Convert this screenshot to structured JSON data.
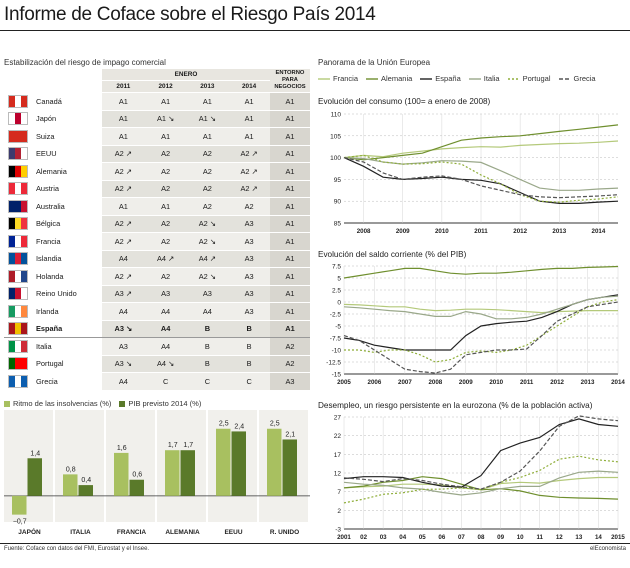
{
  "title": "Informe de Coface sobre el Riesgo País 2014",
  "table": {
    "subtitle": "Estabilización del riesgo de impago comercial",
    "group_header": "ENERO",
    "years": [
      "2011",
      "2012",
      "2013",
      "2014"
    ],
    "last_header": "ENTORNO PARA NEGOCIOS",
    "rows": [
      {
        "country": "Canadá",
        "flag": [
          "#d52b1e",
          "#ffffff",
          "#d52b1e"
        ],
        "vals": [
          "A1",
          "A1",
          "A1",
          "A1"
        ],
        "env": "A1"
      },
      {
        "country": "Japón",
        "flag": [
          "#ffffff",
          "#bc002d",
          "#ffffff"
        ],
        "vals": [
          "A1",
          "A1 ↘",
          "A1 ↘",
          "A1"
        ],
        "env": "A1"
      },
      {
        "country": "Suiza",
        "flag": [
          "#d52b1e",
          "#d52b1e",
          "#d52b1e"
        ],
        "vals": [
          "A1",
          "A1",
          "A1",
          "A1"
        ],
        "env": "A1"
      },
      {
        "country": "EEUU",
        "flag": [
          "#3c3b6e",
          "#b22234",
          "#ffffff"
        ],
        "vals": [
          "A2 ↗",
          "A2",
          "A2",
          "A2 ↗"
        ],
        "env": "A1"
      },
      {
        "country": "Alemania",
        "flag": [
          "#000000",
          "#dd0000",
          "#ffce00"
        ],
        "vals": [
          "A2 ↗",
          "A2",
          "A2",
          "A2 ↗"
        ],
        "env": "A1"
      },
      {
        "country": "Austria",
        "flag": [
          "#ed2939",
          "#ffffff",
          "#ed2939"
        ],
        "vals": [
          "A2 ↗",
          "A2",
          "A2",
          "A2 ↗"
        ],
        "env": "A1"
      },
      {
        "country": "Australia",
        "flag": [
          "#012169",
          "#012169",
          "#c8102e"
        ],
        "vals": [
          "A1",
          "A1",
          "A2",
          "A2"
        ],
        "env": "A1"
      },
      {
        "country": "Bélgica",
        "flag": [
          "#000000",
          "#fdda24",
          "#ef3340"
        ],
        "vals": [
          "A2 ↗",
          "A2",
          "A2 ↘",
          "A3"
        ],
        "env": "A1"
      },
      {
        "country": "Francia",
        "flag": [
          "#002395",
          "#ffffff",
          "#ed2939"
        ],
        "vals": [
          "A2 ↗",
          "A2",
          "A2 ↘",
          "A3"
        ],
        "env": "A1"
      },
      {
        "country": "Islandia",
        "flag": [
          "#02529c",
          "#dc1e35",
          "#02529c"
        ],
        "vals": [
          "A4",
          "A4 ↗",
          "A4 ↗",
          "A3"
        ],
        "env": "A1"
      },
      {
        "country": "Holanda",
        "flag": [
          "#ae1c28",
          "#ffffff",
          "#21468b"
        ],
        "vals": [
          "A2 ↗",
          "A2",
          "A2 ↘",
          "A3"
        ],
        "env": "A1"
      },
      {
        "country": "Reino Unido",
        "flag": [
          "#012169",
          "#c8102e",
          "#ffffff"
        ],
        "vals": [
          "A3 ↗",
          "A3",
          "A3",
          "A3"
        ],
        "env": "A1"
      },
      {
        "country": "Irlanda",
        "flag": [
          "#169b62",
          "#ffffff",
          "#ff883e"
        ],
        "vals": [
          "A4",
          "A4",
          "A4",
          "A3"
        ],
        "env": "A1"
      },
      {
        "country": "España",
        "flag": [
          "#aa151b",
          "#f1bf00",
          "#aa151b"
        ],
        "vals": [
          "A3 ↘",
          "A4",
          "B",
          "B"
        ],
        "env": "A1",
        "highlight": true
      },
      {
        "country": "Italia",
        "flag": [
          "#009246",
          "#ffffff",
          "#ce2b37"
        ],
        "vals": [
          "A3",
          "A4",
          "B",
          "B"
        ],
        "env": "A2"
      },
      {
        "country": "Portugal",
        "flag": [
          "#006600",
          "#ff0000",
          "#ff0000"
        ],
        "vals": [
          "A3 ↘",
          "A4 ↘",
          "B",
          "B"
        ],
        "env": "A2"
      },
      {
        "country": "Grecia",
        "flag": [
          "#0d5eaf",
          "#ffffff",
          "#0d5eaf"
        ],
        "vals": [
          "A4",
          "C",
          "C",
          "C"
        ],
        "env": "A3"
      }
    ]
  },
  "bar_legend": {
    "a": "Ritmo de las insolvencias (%)",
    "b": "PIB previsto 2014 (%)"
  },
  "panorama": "Panorama de la Unión Europea",
  "series_legend": [
    "Francia",
    "Alemania",
    "España",
    "Italia",
    "Portugal",
    "Grecia"
  ],
  "colors": {
    "dark_green": "#5a7a2a",
    "light_green": "#a8c060",
    "francia": "#b4c97a",
    "alemania": "#6f8f2e",
    "espana": "#222222",
    "italia": "#9aa88a",
    "portugal": "#8fae3a",
    "grecia": "#555555"
  },
  "footer": {
    "source": "Fuente: Coface con datos del FMI, Eurostat y el Insee.",
    "brand": "elEconomista"
  },
  "chart_data": [
    {
      "type": "bar",
      "categories": [
        "JAPÓN",
        "ITALIA",
        "FRANCIA",
        "ALEMANIA",
        "EEUU",
        "R. UNIDO"
      ],
      "series": [
        {
          "name": "Ritmo de las insolvencias (%)",
          "values": [
            -0.7,
            0.8,
            1.6,
            1.7,
            2.5,
            2.5
          ]
        },
        {
          "name": "PIB previsto 2014 (%)",
          "values": [
            1.4,
            0.4,
            0.6,
            1.7,
            2.4,
            2.1
          ]
        }
      ],
      "value_labels": [
        [
          "−0,7",
          "0,8",
          "1,6",
          "1,7",
          "2,5",
          "2,5"
        ],
        [
          "1,4",
          "0,4",
          "0,6",
          "1,7",
          "2,4",
          "2,1"
        ]
      ],
      "ylim": [
        -0.9,
        2.9
      ]
    },
    {
      "type": "line",
      "title": "Evolución del consumo (100= a enero de 2008)",
      "x": [
        2007.5,
        2008,
        2008.5,
        2009,
        2009.5,
        2010,
        2010.5,
        2011,
        2011.5,
        2012,
        2012.5,
        2013,
        2013.5,
        2014,
        2014.5
      ],
      "xticks": [
        "2008",
        "2009",
        "2010",
        "2011",
        "2012",
        "2013",
        "2014"
      ],
      "yticks": [
        85,
        90,
        95,
        100,
        105,
        110
      ],
      "ylim": [
        85,
        110
      ],
      "series": [
        {
          "name": "Francia",
          "values": [
            100,
            100.5,
            100.2,
            101,
            101.5,
            102,
            102.3,
            102.5,
            102.4,
            102.8,
            103,
            103.2,
            103.3,
            103.5,
            103.8
          ]
        },
        {
          "name": "Alemania",
          "values": [
            100,
            99.5,
            100,
            100.5,
            101,
            102.5,
            104,
            104.5,
            104.8,
            105,
            105.5,
            106,
            106.5,
            107,
            107.5
          ]
        },
        {
          "name": "España",
          "values": [
            100,
            98,
            95.5,
            95,
            95.2,
            95.5,
            95,
            94.8,
            94,
            92,
            90,
            89.5,
            89.5,
            89.8,
            90
          ]
        },
        {
          "name": "Italia",
          "values": [
            100,
            99.8,
            99,
            98.5,
            98.8,
            99.3,
            99.2,
            98.9,
            97,
            95,
            93,
            92.5,
            92.5,
            92.8,
            93
          ]
        },
        {
          "name": "Portugal",
          "values": [
            100,
            100.5,
            99,
            98.5,
            98.6,
            99,
            98.5,
            96,
            94,
            91.5,
            90,
            89.8,
            90.2,
            90.5,
            91
          ]
        },
        {
          "name": "Grecia",
          "values": [
            100,
            99,
            96.5,
            95,
            95.5,
            95.8,
            95,
            93.5,
            92.5,
            91.5,
            91,
            90.8,
            91,
            91.2,
            91.5
          ]
        }
      ]
    },
    {
      "type": "line",
      "title": "Evolución del saldo corriente (% del PIB)",
      "x": [
        2005,
        2005.5,
        2006,
        2006.5,
        2007,
        2007.5,
        2008,
        2008.5,
        2009,
        2009.5,
        2010,
        2010.5,
        2011,
        2011.5,
        2012,
        2012.5,
        2013,
        2013.5,
        2014
      ],
      "xticks": [
        "2005",
        "2006",
        "2007",
        "2008",
        "2009",
        "2010",
        "2011",
        "2012",
        "2013",
        "2014"
      ],
      "yticks": [
        -15,
        -12.5,
        -10,
        -7.5,
        -5,
        -2.5,
        0,
        2.5,
        5,
        7.5
      ],
      "ylim": [
        -15,
        7.5
      ],
      "series": [
        {
          "name": "Francia",
          "values": [
            -0.5,
            -0.6,
            -0.8,
            -1,
            -1,
            -1.5,
            -1.8,
            -1.7,
            -1.5,
            -1.5,
            -1.6,
            -1.8,
            -2,
            -2.2,
            -2,
            -1.9,
            -1.8,
            -1.8,
            -1.8
          ]
        },
        {
          "name": "Alemania",
          "values": [
            5,
            5.5,
            6,
            6.5,
            7,
            7,
            6.5,
            6,
            5.8,
            6,
            6,
            6.2,
            6.5,
            6.8,
            7,
            7,
            7.2,
            7.3,
            7.4
          ]
        },
        {
          "name": "España",
          "values": [
            -7.5,
            -8,
            -9,
            -9.5,
            -10,
            -10,
            -10,
            -10,
            -7,
            -5,
            -4.5,
            -4.2,
            -4,
            -3.2,
            -2,
            -0.5,
            0.5,
            1,
            1.5
          ]
        },
        {
          "name": "Italia",
          "values": [
            -1,
            -1.2,
            -1.5,
            -1.8,
            -2,
            -2.5,
            -3,
            -3,
            -2,
            -2.5,
            -3.5,
            -3.5,
            -3.2,
            -2.5,
            -1.5,
            -0.5,
            0.5,
            1,
            1.2
          ]
        },
        {
          "name": "Portugal",
          "values": [
            -10,
            -10,
            -10.5,
            -10,
            -10,
            -11,
            -12.5,
            -12,
            -10.5,
            -10.2,
            -10.5,
            -10,
            -9,
            -7,
            -5,
            -3,
            -1,
            0,
            0.5
          ]
        },
        {
          "name": "Grecia",
          "values": [
            -7,
            -8,
            -10,
            -12,
            -14,
            -14.5,
            -14.8,
            -14,
            -11,
            -10.5,
            -10,
            -10,
            -9.8,
            -7,
            -4,
            -2.5,
            -1,
            -0.5,
            0
          ]
        }
      ]
    },
    {
      "type": "line",
      "title": "Desempleo, un riesgo persistente en la eurozona (% de la población activa)",
      "x": [
        2001,
        2002,
        2003,
        2004,
        2005,
        2006,
        2007,
        2008,
        2009,
        2010,
        2011,
        2012,
        2013,
        2014,
        2015
      ],
      "xticks": [
        "2001",
        "02",
        "03",
        "04",
        "05",
        "06",
        "07",
        "08",
        "09",
        "10",
        "11",
        "12",
        "13",
        "14",
        "2015"
      ],
      "yticks": [
        -3,
        2,
        7,
        12,
        17,
        22,
        27
      ],
      "ylim": [
        -3,
        27
      ],
      "series": [
        {
          "name": "Francia",
          "values": [
            8,
            8.3,
            8.5,
            9,
            9,
            8.8,
            8,
            7.5,
            9.2,
            9.5,
            9.3,
            10,
            10.5,
            10.8,
            10.8
          ]
        },
        {
          "name": "Alemania",
          "values": [
            8,
            8.5,
            9.5,
            10,
            11,
            10.5,
            9,
            7.5,
            7.8,
            7.2,
            6,
            5.5,
            5.3,
            5.2,
            5
          ]
        },
        {
          "name": "España",
          "values": [
            10.5,
            11,
            11,
            10.8,
            9.5,
            8.5,
            8.2,
            11.3,
            18,
            20,
            21.5,
            25,
            26.5,
            25,
            24.5
          ]
        },
        {
          "name": "Italia",
          "values": [
            9.5,
            9,
            8.7,
            8,
            7.7,
            6.8,
            6.1,
            6.7,
            7.8,
            8.4,
            8.4,
            10.7,
            12.2,
            12.5,
            12.2
          ]
        },
        {
          "name": "Portugal",
          "values": [
            4,
            5,
            6.3,
            6.7,
            7.6,
            7.7,
            8,
            7.6,
            9.5,
            10.8,
            12.7,
            15.7,
            16.5,
            15.5,
            15
          ]
        },
        {
          "name": "Grecia",
          "values": [
            10.7,
            10.3,
            9.7,
            10.5,
            10,
            9,
            8.3,
            7.7,
            9.5,
            12.5,
            17.9,
            24.5,
            27.3,
            26.5,
            26
          ]
        }
      ]
    }
  ]
}
